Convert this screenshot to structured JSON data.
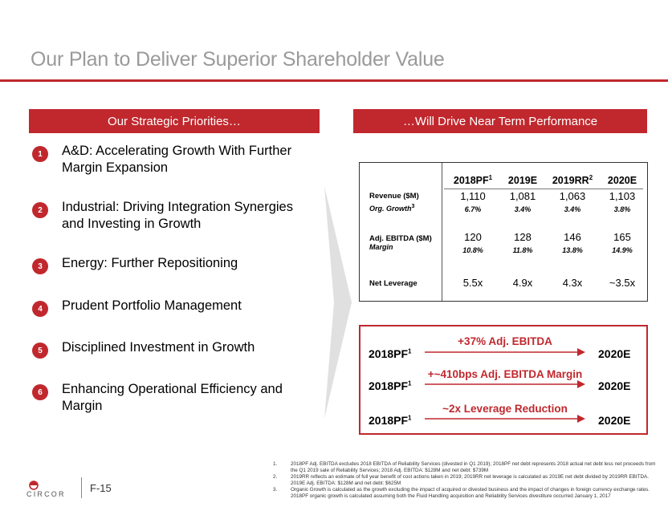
{
  "title": "Our Plan to Deliver Superior Shareholder Value",
  "left_banner": "Our Strategic Priorities…",
  "right_banner": "…Will Drive Near Term Performance",
  "priorities": [
    {
      "num": "1",
      "text": "A&D: Accelerating Growth With Further Margin Expansion"
    },
    {
      "num": "2",
      "text": "Industrial: Driving Integration Synergies and Investing in Growth"
    },
    {
      "num": "3",
      "text": "Energy: Further Repositioning"
    },
    {
      "num": "4",
      "text": "Prudent Portfolio Management"
    },
    {
      "num": "5",
      "text": "Disciplined Investment in Growth"
    },
    {
      "num": "6",
      "text": "Enhancing Operational Efficiency and Margin"
    }
  ],
  "table": {
    "columns": [
      {
        "label": "2018PF",
        "sup": "1"
      },
      {
        "label": "2019E",
        "sup": ""
      },
      {
        "label": "2019RR",
        "sup": "2"
      },
      {
        "label": "2020E",
        "sup": ""
      }
    ],
    "revenue_label": "Revenue ($M)",
    "org_growth_label": "Org. Growth",
    "org_growth_sup": "3",
    "revenue": [
      "1,110",
      "1,081",
      "1,063",
      "1,103"
    ],
    "org_growth": [
      "6.7%",
      "3.4%",
      "3.4%",
      "3.8%"
    ],
    "ebitda_label": "Adj. EBITDA ($M)",
    "margin_label": "Margin",
    "ebitda": [
      "120",
      "128",
      "146",
      "165"
    ],
    "margin": [
      "10.8%",
      "11.8%",
      "13.8%",
      "14.9%"
    ],
    "leverage_label": "Net Leverage",
    "leverage": [
      "5.5x",
      "4.9x",
      "4.3x",
      "~3.5x"
    ]
  },
  "bridges": [
    {
      "label": "+37% Adj. EBITDA",
      "from": "2018PF",
      "from_sup": "1",
      "to": "2020E"
    },
    {
      "label": "+~410bps Adj. EBITDA Margin",
      "from": "2018PF",
      "from_sup": "1",
      "to": "2020E"
    },
    {
      "label": "~2x Leverage Reduction",
      "from": "2018PF",
      "from_sup": "1",
      "to": "2020E"
    }
  ],
  "logo_text": "CIRCOR",
  "page_number": "F-15",
  "footnotes": [
    {
      "num": "1.",
      "text": "2018PF Adj. EBITDA excludes 2018 EBITDA of Reliability Services (divested in Q1 2019); 2018PF net debt represents 2018 actual net debt less net proceeds from the Q1 2019 sale of Reliability Services; 2018 Adj. EBITDA: $128M and net debt: $739M"
    },
    {
      "num": "2.",
      "text": "2019RR reflects an estimate of full year benefit of cost actions taken in 2019; 2019RR net leverage is calculated as 2019E net debt divided by 2019RR EBITDA. 2019E Adj. EBITDA: $128M and net debt: $625M"
    },
    {
      "num": "3.",
      "text": "Organic Growth is calculated as the growth excluding the impact of acquired or divested business and the impact of changes in foreign currency exchange rates. 2018PF organic growth is calculated assuming both the Fluid Handling acquisition and Reliability Services divestiture occurred January 1, 2017"
    }
  ],
  "colors": {
    "accent": "#c0282e",
    "title": "#9a9a9a"
  }
}
